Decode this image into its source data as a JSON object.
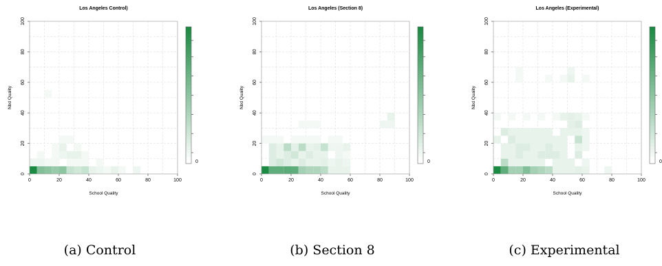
{
  "chart_data": [
    {
      "type": "heatmap",
      "title": "Los Angeles Control)",
      "xlabel": "School Quality",
      "ylabel": "Nbd Quality",
      "xlim": [
        0,
        100
      ],
      "ylim": [
        0,
        100
      ],
      "x_ticks": [
        "0",
        "20",
        "40",
        "60",
        "80",
        "100"
      ],
      "y_ticks": [
        "0",
        "20",
        "40",
        "60",
        "80",
        "100"
      ],
      "bin_size": 5,
      "grid": true,
      "colorbar": {
        "min_label": "0",
        "low_color": "#ffffff",
        "high_color": "#1b8a43"
      },
      "caption": "(a) Control",
      "cells": [
        {
          "x": 0,
          "y": 0,
          "v": 1.0
        },
        {
          "x": 5,
          "y": 0,
          "v": 0.55
        },
        {
          "x": 10,
          "y": 0,
          "v": 0.5
        },
        {
          "x": 15,
          "y": 0,
          "v": 0.45
        },
        {
          "x": 20,
          "y": 0,
          "v": 0.5
        },
        {
          "x": 25,
          "y": 0,
          "v": 0.25
        },
        {
          "x": 30,
          "y": 0,
          "v": 0.2
        },
        {
          "x": 35,
          "y": 0,
          "v": 0.25
        },
        {
          "x": 40,
          "y": 0,
          "v": 0.1
        },
        {
          "x": 45,
          "y": 0,
          "v": 0.08
        },
        {
          "x": 50,
          "y": 0,
          "v": 0.05
        },
        {
          "x": 55,
          "y": 0,
          "v": 0.1
        },
        {
          "x": 60,
          "y": 0,
          "v": 0.05
        },
        {
          "x": 70,
          "y": 0,
          "v": 0.08
        },
        {
          "x": 0,
          "y": 5,
          "v": 0.08
        },
        {
          "x": 5,
          "y": 5,
          "v": 0.08
        },
        {
          "x": 10,
          "y": 5,
          "v": 0.05
        },
        {
          "x": 15,
          "y": 5,
          "v": 0.05
        },
        {
          "x": 25,
          "y": 5,
          "v": 0.05
        },
        {
          "x": 30,
          "y": 5,
          "v": 0.05
        },
        {
          "x": 35,
          "y": 5,
          "v": 0.05
        },
        {
          "x": 45,
          "y": 5,
          "v": 0.05
        },
        {
          "x": 5,
          "y": 10,
          "v": 0.05
        },
        {
          "x": 15,
          "y": 10,
          "v": 0.05
        },
        {
          "x": 20,
          "y": 10,
          "v": 0.08
        },
        {
          "x": 25,
          "y": 10,
          "v": 0.1
        },
        {
          "x": 30,
          "y": 10,
          "v": 0.1
        },
        {
          "x": 35,
          "y": 10,
          "v": 0.05
        },
        {
          "x": 15,
          "y": 15,
          "v": 0.05
        },
        {
          "x": 20,
          "y": 15,
          "v": 0.1
        },
        {
          "x": 30,
          "y": 15,
          "v": 0.05
        },
        {
          "x": 20,
          "y": 20,
          "v": 0.05
        },
        {
          "x": 25,
          "y": 20,
          "v": 0.05
        },
        {
          "x": 10,
          "y": 50,
          "v": 0.05
        }
      ]
    },
    {
      "type": "heatmap",
      "title": "Los Angeles (Section 8)",
      "xlabel": "School Quality",
      "ylabel": "Nbd Quality",
      "xlim": [
        0,
        100
      ],
      "ylim": [
        0,
        100
      ],
      "x_ticks": [
        "0",
        "20",
        "40",
        "60",
        "80",
        "100"
      ],
      "y_ticks": [
        "0",
        "20",
        "40",
        "60",
        "80",
        "100"
      ],
      "bin_size": 5,
      "grid": true,
      "colorbar": {
        "min_label": "0",
        "low_color": "#ffffff",
        "high_color": "#1b8a43"
      },
      "caption": "(b) Section 8",
      "cells": [
        {
          "x": 0,
          "y": 0,
          "v": 1.0
        },
        {
          "x": 5,
          "y": 0,
          "v": 0.7
        },
        {
          "x": 10,
          "y": 0,
          "v": 0.7
        },
        {
          "x": 15,
          "y": 0,
          "v": 0.72
        },
        {
          "x": 20,
          "y": 0,
          "v": 0.7
        },
        {
          "x": 25,
          "y": 0,
          "v": 0.4
        },
        {
          "x": 30,
          "y": 0,
          "v": 0.35
        },
        {
          "x": 35,
          "y": 0,
          "v": 0.35
        },
        {
          "x": 40,
          "y": 0,
          "v": 0.3
        },
        {
          "x": 45,
          "y": 0,
          "v": 0.1
        },
        {
          "x": 50,
          "y": 0,
          "v": 0.1
        },
        {
          "x": 55,
          "y": 0,
          "v": 0.1
        },
        {
          "x": 5,
          "y": 5,
          "v": 0.15
        },
        {
          "x": 10,
          "y": 5,
          "v": 0.2
        },
        {
          "x": 15,
          "y": 5,
          "v": 0.15
        },
        {
          "x": 20,
          "y": 5,
          "v": 0.1
        },
        {
          "x": 25,
          "y": 5,
          "v": 0.15
        },
        {
          "x": 30,
          "y": 5,
          "v": 0.1
        },
        {
          "x": 35,
          "y": 5,
          "v": 0.1
        },
        {
          "x": 40,
          "y": 5,
          "v": 0.12
        },
        {
          "x": 45,
          "y": 5,
          "v": 0.08
        },
        {
          "x": 50,
          "y": 5,
          "v": 0.1
        },
        {
          "x": 55,
          "y": 5,
          "v": 0.08
        },
        {
          "x": 5,
          "y": 10,
          "v": 0.15
        },
        {
          "x": 10,
          "y": 10,
          "v": 0.1
        },
        {
          "x": 15,
          "y": 10,
          "v": 0.15
        },
        {
          "x": 20,
          "y": 10,
          "v": 0.2
        },
        {
          "x": 25,
          "y": 10,
          "v": 0.1
        },
        {
          "x": 30,
          "y": 10,
          "v": 0.15
        },
        {
          "x": 35,
          "y": 10,
          "v": 0.1
        },
        {
          "x": 40,
          "y": 10,
          "v": 0.1
        },
        {
          "x": 50,
          "y": 10,
          "v": 0.08
        },
        {
          "x": 55,
          "y": 10,
          "v": 0.05
        },
        {
          "x": 5,
          "y": 15,
          "v": 0.15
        },
        {
          "x": 10,
          "y": 15,
          "v": 0.1
        },
        {
          "x": 15,
          "y": 15,
          "v": 0.3
        },
        {
          "x": 20,
          "y": 15,
          "v": 0.12
        },
        {
          "x": 25,
          "y": 15,
          "v": 0.3
        },
        {
          "x": 30,
          "y": 15,
          "v": 0.1
        },
        {
          "x": 35,
          "y": 15,
          "v": 0.12
        },
        {
          "x": 40,
          "y": 15,
          "v": 0.25
        },
        {
          "x": 45,
          "y": 15,
          "v": 0.08
        },
        {
          "x": 50,
          "y": 15,
          "v": 0.08
        },
        {
          "x": 55,
          "y": 15,
          "v": 0.1
        },
        {
          "x": 0,
          "y": 20,
          "v": 0.05
        },
        {
          "x": 5,
          "y": 20,
          "v": 0.05
        },
        {
          "x": 10,
          "y": 20,
          "v": 0.05
        },
        {
          "x": 20,
          "y": 20,
          "v": 0.05
        },
        {
          "x": 25,
          "y": 20,
          "v": 0.05
        },
        {
          "x": 30,
          "y": 20,
          "v": 0.05
        },
        {
          "x": 35,
          "y": 20,
          "v": 0.05
        },
        {
          "x": 45,
          "y": 20,
          "v": 0.05
        },
        {
          "x": 50,
          "y": 20,
          "v": 0.05
        },
        {
          "x": 25,
          "y": 30,
          "v": 0.05
        },
        {
          "x": 30,
          "y": 30,
          "v": 0.05
        },
        {
          "x": 35,
          "y": 30,
          "v": 0.05
        },
        {
          "x": 80,
          "y": 30,
          "v": 0.08
        },
        {
          "x": 85,
          "y": 30,
          "v": 0.08
        },
        {
          "x": 85,
          "y": 35,
          "v": 0.1
        }
      ]
    },
    {
      "type": "heatmap",
      "title": "Los Angeles (Experimental)",
      "xlabel": "School Quality",
      "ylabel": "Nbd Quality",
      "xlim": [
        0,
        100
      ],
      "ylim": [
        0,
        100
      ],
      "x_ticks": [
        "0",
        "20",
        "40",
        "60",
        "80",
        "100"
      ],
      "y_ticks": [
        "0",
        "20",
        "40",
        "60",
        "80",
        "100"
      ],
      "bin_size": 5,
      "grid": true,
      "colorbar": {
        "min_label": "0",
        "low_color": "#ffffff",
        "high_color": "#1b8a43"
      },
      "caption": "(c) Experimental",
      "cells": [
        {
          "x": 0,
          "y": 0,
          "v": 1.0
        },
        {
          "x": 5,
          "y": 0,
          "v": 0.7
        },
        {
          "x": 10,
          "y": 0,
          "v": 0.4
        },
        {
          "x": 15,
          "y": 0,
          "v": 0.4
        },
        {
          "x": 20,
          "y": 0,
          "v": 0.55
        },
        {
          "x": 25,
          "y": 0,
          "v": 0.4
        },
        {
          "x": 30,
          "y": 0,
          "v": 0.35
        },
        {
          "x": 35,
          "y": 0,
          "v": 0.3
        },
        {
          "x": 40,
          "y": 0,
          "v": 0.1
        },
        {
          "x": 45,
          "y": 0,
          "v": 0.1
        },
        {
          "x": 50,
          "y": 0,
          "v": 0.1
        },
        {
          "x": 55,
          "y": 0,
          "v": 0.12
        },
        {
          "x": 60,
          "y": 0,
          "v": 0.1
        },
        {
          "x": 75,
          "y": 0,
          "v": 0.08
        },
        {
          "x": 5,
          "y": 5,
          "v": 0.3
        },
        {
          "x": 10,
          "y": 5,
          "v": 0.1
        },
        {
          "x": 15,
          "y": 5,
          "v": 0.1
        },
        {
          "x": 20,
          "y": 5,
          "v": 0.1
        },
        {
          "x": 25,
          "y": 5,
          "v": 0.1
        },
        {
          "x": 30,
          "y": 5,
          "v": 0.1
        },
        {
          "x": 40,
          "y": 5,
          "v": 0.1
        },
        {
          "x": 45,
          "y": 5,
          "v": 0.1
        },
        {
          "x": 50,
          "y": 5,
          "v": 0.1
        },
        {
          "x": 60,
          "y": 5,
          "v": 0.08
        },
        {
          "x": 5,
          "y": 10,
          "v": 0.1
        },
        {
          "x": 10,
          "y": 10,
          "v": 0.1
        },
        {
          "x": 15,
          "y": 10,
          "v": 0.15
        },
        {
          "x": 20,
          "y": 10,
          "v": 0.1
        },
        {
          "x": 25,
          "y": 10,
          "v": 0.1
        },
        {
          "x": 30,
          "y": 10,
          "v": 0.15
        },
        {
          "x": 35,
          "y": 10,
          "v": 0.15
        },
        {
          "x": 40,
          "y": 10,
          "v": 0.15
        },
        {
          "x": 45,
          "y": 10,
          "v": 0.1
        },
        {
          "x": 55,
          "y": 10,
          "v": 0.15
        },
        {
          "x": 5,
          "y": 15,
          "v": 0.1
        },
        {
          "x": 10,
          "y": 15,
          "v": 0.1
        },
        {
          "x": 15,
          "y": 15,
          "v": 0.15
        },
        {
          "x": 20,
          "y": 15,
          "v": 0.15
        },
        {
          "x": 25,
          "y": 15,
          "v": 0.1
        },
        {
          "x": 30,
          "y": 15,
          "v": 0.1
        },
        {
          "x": 35,
          "y": 15,
          "v": 0.15
        },
        {
          "x": 40,
          "y": 15,
          "v": 0.1
        },
        {
          "x": 45,
          "y": 15,
          "v": 0.1
        },
        {
          "x": 55,
          "y": 15,
          "v": 0.1
        },
        {
          "x": 60,
          "y": 15,
          "v": 0.08
        },
        {
          "x": 0,
          "y": 20,
          "v": 0.1
        },
        {
          "x": 10,
          "y": 20,
          "v": 0.15
        },
        {
          "x": 15,
          "y": 20,
          "v": 0.1
        },
        {
          "x": 20,
          "y": 20,
          "v": 0.1
        },
        {
          "x": 25,
          "y": 20,
          "v": 0.1
        },
        {
          "x": 30,
          "y": 20,
          "v": 0.1
        },
        {
          "x": 35,
          "y": 20,
          "v": 0.1
        },
        {
          "x": 40,
          "y": 20,
          "v": 0.1
        },
        {
          "x": 45,
          "y": 20,
          "v": 0.1
        },
        {
          "x": 55,
          "y": 20,
          "v": 0.25
        },
        {
          "x": 60,
          "y": 20,
          "v": 0.08
        },
        {
          "x": 5,
          "y": 25,
          "v": 0.15
        },
        {
          "x": 10,
          "y": 25,
          "v": 0.1
        },
        {
          "x": 15,
          "y": 25,
          "v": 0.1
        },
        {
          "x": 20,
          "y": 25,
          "v": 0.1
        },
        {
          "x": 25,
          "y": 25,
          "v": 0.1
        },
        {
          "x": 30,
          "y": 25,
          "v": 0.1
        },
        {
          "x": 35,
          "y": 25,
          "v": 0.1
        },
        {
          "x": 45,
          "y": 25,
          "v": 0.1
        },
        {
          "x": 50,
          "y": 25,
          "v": 0.1
        },
        {
          "x": 55,
          "y": 25,
          "v": 0.1
        },
        {
          "x": 60,
          "y": 25,
          "v": 0.08
        },
        {
          "x": 50,
          "y": 30,
          "v": 0.12
        },
        {
          "x": 55,
          "y": 30,
          "v": 0.15
        },
        {
          "x": 0,
          "y": 35,
          "v": 0.05
        },
        {
          "x": 10,
          "y": 35,
          "v": 0.05
        },
        {
          "x": 20,
          "y": 35,
          "v": 0.05
        },
        {
          "x": 30,
          "y": 35,
          "v": 0.05
        },
        {
          "x": 40,
          "y": 35,
          "v": 0.05
        },
        {
          "x": 45,
          "y": 35,
          "v": 0.1
        },
        {
          "x": 50,
          "y": 35,
          "v": 0.12
        },
        {
          "x": 55,
          "y": 35,
          "v": 0.1
        },
        {
          "x": 60,
          "y": 35,
          "v": 0.05
        },
        {
          "x": 15,
          "y": 60,
          "v": 0.05
        },
        {
          "x": 15,
          "y": 65,
          "v": 0.05
        },
        {
          "x": 35,
          "y": 60,
          "v": 0.05
        },
        {
          "x": 45,
          "y": 60,
          "v": 0.05
        },
        {
          "x": 50,
          "y": 60,
          "v": 0.1
        },
        {
          "x": 50,
          "y": 65,
          "v": 0.08
        },
        {
          "x": 60,
          "y": 60,
          "v": 0.05
        }
      ]
    }
  ]
}
